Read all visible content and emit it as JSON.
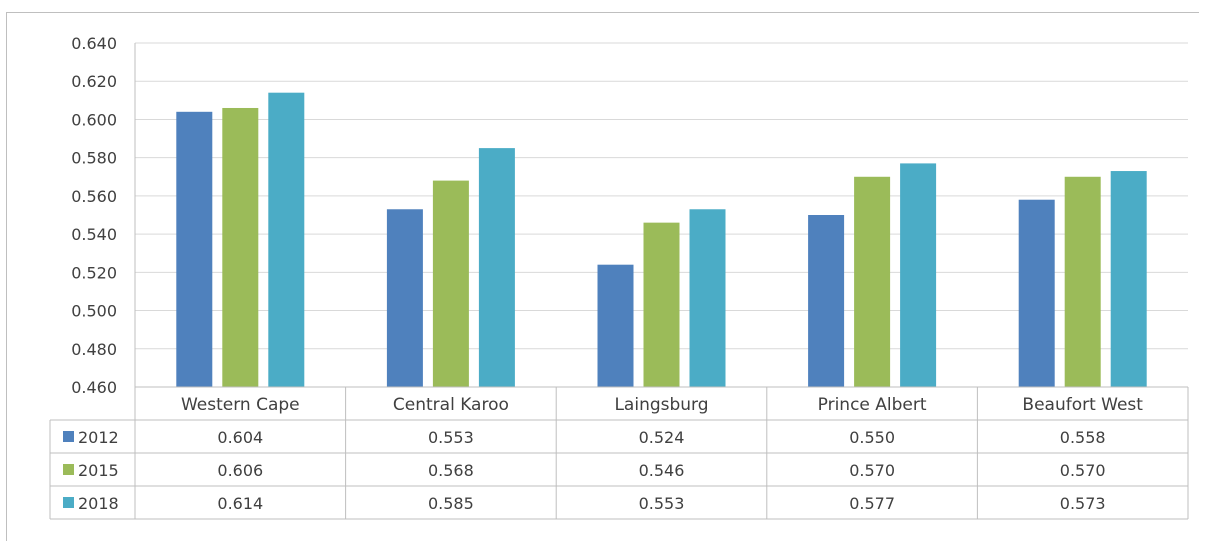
{
  "chart_data": {
    "type": "bar",
    "categories": [
      "Western Cape",
      "Central Karoo",
      "Laingsburg",
      "Prince Albert",
      "Beaufort West"
    ],
    "series": [
      {
        "name": "2012",
        "color": "#4f81bd",
        "values": [
          0.604,
          0.553,
          0.524,
          0.55,
          0.558
        ],
        "labels": [
          "0.604",
          "0.553",
          "0.524",
          "0.550",
          "0.558"
        ]
      },
      {
        "name": "2015",
        "color": "#9bbb59",
        "values": [
          0.606,
          0.568,
          0.546,
          0.57,
          0.57
        ],
        "labels": [
          "0.606",
          "0.568",
          "0.546",
          "0.570",
          "0.570"
        ]
      },
      {
        "name": "2018",
        "color": "#4bacc6",
        "values": [
          0.614,
          0.585,
          0.553,
          0.577,
          0.573
        ],
        "labels": [
          "0.614",
          "0.585",
          "0.553",
          "0.577",
          "0.573"
        ]
      }
    ],
    "ylim": [
      0.46,
      0.64
    ],
    "yticks": [
      "0.640",
      "0.620",
      "0.600",
      "0.580",
      "0.560",
      "0.540",
      "0.520",
      "0.500",
      "0.480",
      "0.460"
    ],
    "grid": true,
    "legend": "data-table-rows",
    "title": "",
    "xlabel": "",
    "ylabel": ""
  },
  "colors": {
    "gridline": "#d9d9d9",
    "axis": "#bfbfbf",
    "text": "#404040"
  }
}
